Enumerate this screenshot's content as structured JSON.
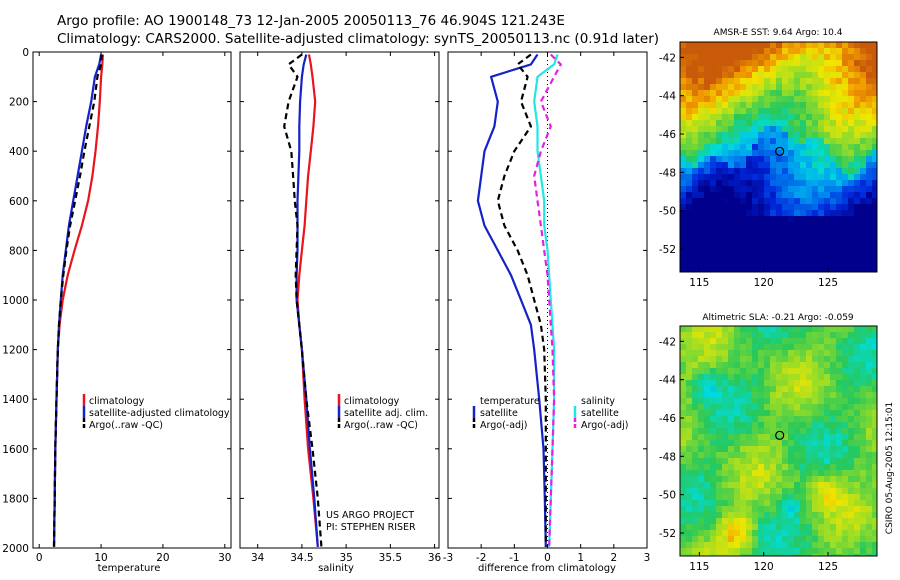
{
  "header": {
    "line1": "Argo profile: AO 1900148_73 12-Jan-2005 20050113_76 46.904S 121.243E",
    "line2": "Climatology: CARS2000. Satellite-adjusted climatology: synTS_20050113.nc (0.91d later)"
  },
  "credit": {
    "project": "US ARGO PROJECT",
    "pi": "PI: STEPHEN RISER"
  },
  "stamp": "CSIRO 05-Aug-2005 12:15:01",
  "colors": {
    "red": "#e8141e",
    "blue": "#1422c8",
    "black": "#000000",
    "cyan": "#22e6e6",
    "magenta": "#e61ee6"
  },
  "chart_data": [
    {
      "id": "temperature",
      "type": "line",
      "xlabel": "temperature",
      "xlim": [
        -1,
        31
      ],
      "ylim": [
        2000,
        0
      ],
      "xticks": [
        0,
        10,
        20,
        30
      ],
      "yticks": [
        0,
        200,
        400,
        600,
        800,
        1000,
        1200,
        1400,
        1600,
        1800,
        2000
      ],
      "legend": [
        "climatology",
        "satellite-adjusted climatology",
        "Argo(..raw -QC)"
      ],
      "series": [
        {
          "name": "climatology",
          "color": "red",
          "dash": false,
          "points": [
            [
              10.3,
              10
            ],
            [
              10.2,
              50
            ],
            [
              10.0,
              100
            ],
            [
              9.8,
              200
            ],
            [
              9.5,
              300
            ],
            [
              9.1,
              400
            ],
            [
              8.6,
              500
            ],
            [
              7.9,
              600
            ],
            [
              6.9,
              700
            ],
            [
              5.7,
              800
            ],
            [
              4.6,
              900
            ],
            [
              3.8,
              1000
            ],
            [
              3.3,
              1100
            ],
            [
              3.0,
              1200
            ],
            [
              2.8,
              1400
            ],
            [
              2.6,
              1600
            ],
            [
              2.5,
              1800
            ],
            [
              2.4,
              1995
            ]
          ]
        },
        {
          "name": "satellite-adjusted climatology",
          "color": "blue",
          "dash": false,
          "points": [
            [
              10.0,
              10
            ],
            [
              9.7,
              50
            ],
            [
              9.0,
              100
            ],
            [
              8.4,
              200
            ],
            [
              7.6,
              300
            ],
            [
              6.9,
              400
            ],
            [
              6.2,
              500
            ],
            [
              5.5,
              600
            ],
            [
              4.8,
              700
            ],
            [
              4.3,
              800
            ],
            [
              3.8,
              900
            ],
            [
              3.5,
              1000
            ],
            [
              3.2,
              1100
            ],
            [
              3.0,
              1200
            ],
            [
              2.8,
              1400
            ],
            [
              2.6,
              1600
            ],
            [
              2.5,
              1800
            ],
            [
              2.4,
              1995
            ]
          ]
        },
        {
          "name": "Argo(..raw -QC)",
          "color": "black",
          "dash": true,
          "points": [
            [
              10.1,
              10
            ],
            [
              10.0,
              50
            ],
            [
              9.4,
              100
            ],
            [
              8.9,
              200
            ],
            [
              8.1,
              300
            ],
            [
              7.3,
              400
            ],
            [
              6.6,
              500
            ],
            [
              5.8,
              600
            ],
            [
              5.0,
              700
            ],
            [
              4.4,
              800
            ],
            [
              3.9,
              900
            ],
            [
              3.5,
              1000
            ],
            [
              3.2,
              1100
            ],
            [
              3.0,
              1200
            ],
            [
              2.8,
              1400
            ],
            [
              2.6,
              1600
            ],
            [
              2.5,
              1800
            ],
            [
              2.4,
              1995
            ]
          ]
        }
      ]
    },
    {
      "id": "salinity",
      "type": "line",
      "xlabel": "salinity",
      "xlim": [
        33.8,
        36.05
      ],
      "ylim": [
        2000,
        0
      ],
      "xticks": [
        34,
        34.5,
        35,
        35.5,
        36
      ],
      "legend": [
        "climatology",
        "satellite adj. clim.",
        "Argo(..raw -QC)"
      ],
      "series": [
        {
          "name": "climatology",
          "color": "red",
          "dash": false,
          "points": [
            [
              34.58,
              10
            ],
            [
              34.6,
              50
            ],
            [
              34.62,
              100
            ],
            [
              34.65,
              200
            ],
            [
              34.63,
              300
            ],
            [
              34.6,
              400
            ],
            [
              34.57,
              500
            ],
            [
              34.55,
              600
            ],
            [
              34.53,
              700
            ],
            [
              34.5,
              800
            ],
            [
              34.47,
              900
            ],
            [
              34.45,
              1000
            ],
            [
              34.47,
              1100
            ],
            [
              34.5,
              1200
            ],
            [
              34.53,
              1400
            ],
            [
              34.57,
              1600
            ],
            [
              34.63,
              1800
            ],
            [
              34.68,
              1995
            ]
          ]
        },
        {
          "name": "satellite adj. clim.",
          "color": "blue",
          "dash": false,
          "points": [
            [
              34.55,
              10
            ],
            [
              34.52,
              50
            ],
            [
              34.5,
              100
            ],
            [
              34.48,
              200
            ],
            [
              34.47,
              300
            ],
            [
              34.47,
              400
            ],
            [
              34.46,
              500
            ],
            [
              34.45,
              600
            ],
            [
              34.45,
              700
            ],
            [
              34.45,
              800
            ],
            [
              34.44,
              900
            ],
            [
              34.44,
              1000
            ],
            [
              34.47,
              1100
            ],
            [
              34.5,
              1200
            ],
            [
              34.55,
              1400
            ],
            [
              34.59,
              1600
            ],
            [
              34.64,
              1800
            ],
            [
              34.68,
              1995
            ]
          ]
        },
        {
          "name": "Argo(..raw -QC)",
          "color": "black",
          "dash": true,
          "points": [
            [
              34.5,
              10
            ],
            [
              34.35,
              50
            ],
            [
              34.45,
              100
            ],
            [
              34.35,
              200
            ],
            [
              34.3,
              300
            ],
            [
              34.38,
              400
            ],
            [
              34.4,
              500
            ],
            [
              34.42,
              600
            ],
            [
              34.45,
              700
            ],
            [
              34.44,
              800
            ],
            [
              34.43,
              900
            ],
            [
              34.44,
              1000
            ],
            [
              34.47,
              1100
            ],
            [
              34.5,
              1200
            ],
            [
              34.55,
              1400
            ],
            [
              34.62,
              1600
            ],
            [
              34.68,
              1800
            ],
            [
              34.72,
              1995
            ]
          ]
        }
      ]
    },
    {
      "id": "difference",
      "type": "line",
      "xlabel": "difference from climatology",
      "xlim": [
        -3,
        3
      ],
      "ylim": [
        2000,
        0
      ],
      "xticks": [
        -3,
        -2,
        -1,
        0,
        1,
        2,
        3
      ],
      "zero_line": 0,
      "legend_temperature": {
        "title": "temperature",
        "items": [
          "satellite",
          "Argo(-adj)"
        ]
      },
      "legend_salinity": {
        "title": "salinity",
        "items": [
          "satellite",
          "Argo(-adj)"
        ]
      },
      "series": [
        {
          "name": "temperature satellite",
          "color": "blue",
          "dash": false,
          "points": [
            [
              -0.3,
              10
            ],
            [
              -0.5,
              50
            ],
            [
              -1.7,
              100
            ],
            [
              -1.5,
              200
            ],
            [
              -1.6,
              300
            ],
            [
              -1.9,
              400
            ],
            [
              -2.0,
              500
            ],
            [
              -2.1,
              600
            ],
            [
              -1.9,
              700
            ],
            [
              -1.5,
              800
            ],
            [
              -1.1,
              900
            ],
            [
              -0.8,
              1000
            ],
            [
              -0.5,
              1100
            ],
            [
              -0.4,
              1200
            ],
            [
              -0.25,
              1400
            ],
            [
              -0.12,
              1600
            ],
            [
              -0.08,
              1800
            ],
            [
              -0.05,
              1995
            ]
          ]
        },
        {
          "name": "temperature Argo(-adj)",
          "color": "black",
          "dash": true,
          "points": [
            [
              -0.5,
              10
            ],
            [
              -0.9,
              50
            ],
            [
              -0.6,
              100
            ],
            [
              -0.8,
              200
            ],
            [
              -0.5,
              300
            ],
            [
              -1.0,
              400
            ],
            [
              -1.3,
              500
            ],
            [
              -1.5,
              600
            ],
            [
              -1.3,
              700
            ],
            [
              -0.9,
              800
            ],
            [
              -0.6,
              900
            ],
            [
              -0.4,
              1000
            ],
            [
              -0.2,
              1100
            ],
            [
              -0.1,
              1200
            ],
            [
              -0.05,
              1400
            ],
            [
              -0.05,
              1600
            ],
            [
              -0.05,
              1800
            ],
            [
              -0.05,
              1995
            ]
          ]
        },
        {
          "name": "salinity satellite",
          "color": "cyan",
          "dash": false,
          "points": [
            [
              0.3,
              10
            ],
            [
              0.2,
              50
            ],
            [
              -0.3,
              100
            ],
            [
              -0.4,
              200
            ],
            [
              -0.3,
              300
            ],
            [
              -0.3,
              400
            ],
            [
              -0.2,
              500
            ],
            [
              -0.1,
              600
            ],
            [
              -0.1,
              700
            ],
            [
              0.0,
              800
            ],
            [
              0.05,
              900
            ],
            [
              0.1,
              1000
            ],
            [
              0.15,
              1100
            ],
            [
              0.2,
              1200
            ],
            [
              0.2,
              1400
            ],
            [
              0.15,
              1600
            ],
            [
              0.1,
              1800
            ],
            [
              0.05,
              1995
            ]
          ]
        },
        {
          "name": "salinity Argo(-adj)",
          "color": "magenta",
          "dash": true,
          "points": [
            [
              0.1,
              10
            ],
            [
              0.4,
              50
            ],
            [
              0.2,
              100
            ],
            [
              -0.2,
              200
            ],
            [
              0.1,
              300
            ],
            [
              -0.2,
              400
            ],
            [
              -0.4,
              500
            ],
            [
              -0.3,
              600
            ],
            [
              -0.2,
              700
            ],
            [
              -0.1,
              800
            ],
            [
              0.0,
              900
            ],
            [
              0.05,
              1000
            ],
            [
              0.1,
              1100
            ],
            [
              0.15,
              1200
            ],
            [
              0.2,
              1400
            ],
            [
              0.15,
              1600
            ],
            [
              0.1,
              1800
            ],
            [
              0.05,
              1995
            ]
          ]
        }
      ]
    },
    {
      "id": "sst_map",
      "type": "heatmap",
      "title": "AMSR-E SST: 9.64 Argo: 10.4",
      "xticks": [
        115,
        120,
        125
      ],
      "yticks": [
        -42,
        -44,
        -46,
        -48,
        -50,
        -52
      ],
      "xlim": [
        113.5,
        128.8
      ],
      "ylim": [
        -53.2,
        -41.2
      ],
      "marker": [
        121.243,
        -46.904
      ]
    },
    {
      "id": "sla_map",
      "type": "heatmap",
      "title": "Altimetric SLA: -0.21 Argo: -0.059",
      "xticks": [
        115,
        120,
        125
      ],
      "yticks": [
        -42,
        -44,
        -46,
        -48,
        -50,
        -52
      ],
      "xlim": [
        113.5,
        128.8
      ],
      "ylim": [
        -53.2,
        -41.2
      ],
      "marker": [
        121.243,
        -46.904
      ]
    }
  ]
}
